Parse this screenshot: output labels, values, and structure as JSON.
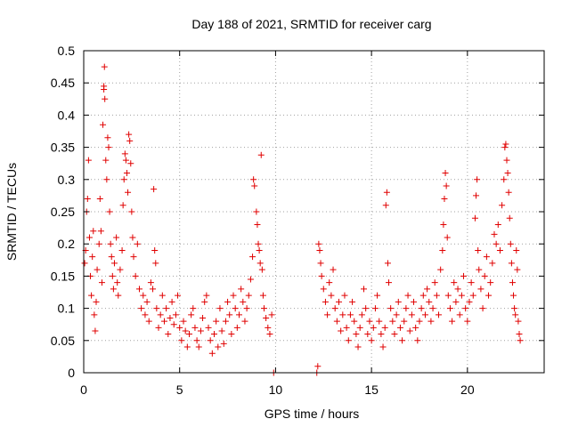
{
  "chart_data": {
    "type": "scatter",
    "title": "Day 188 of 2021, SRMTID for receiver carg",
    "xlabel": "GPS time / hours",
    "ylabel": "SRMTID / TECUs",
    "xlim": [
      0,
      24
    ],
    "ylim": [
      0,
      0.5
    ],
    "x_ticks": [
      0,
      5,
      10,
      15,
      20
    ],
    "x_tick_labels": [
      "0",
      "5",
      "10",
      "15",
      "20"
    ],
    "y_ticks": [
      0,
      0.05,
      0.1,
      0.15,
      0.2,
      0.25,
      0.3,
      0.35,
      0.4,
      0.45,
      0.5
    ],
    "y_tick_labels": [
      "0",
      "0.05",
      "0.1",
      "0.15",
      "0.2",
      "0.25",
      "0.3",
      "0.35",
      "0.4",
      "0.45",
      "0.5"
    ],
    "grid": true,
    "marker": "+",
    "marker_color": "#e00000",
    "series": [
      {
        "name": "SRMTID",
        "points": [
          [
            0.05,
            0.17
          ],
          [
            0.1,
            0.19
          ],
          [
            0.15,
            0.25
          ],
          [
            0.2,
            0.27
          ],
          [
            0.25,
            0.33
          ],
          [
            0.3,
            0.21
          ],
          [
            0.35,
            0.15
          ],
          [
            0.4,
            0.12
          ],
          [
            0.45,
            0.18
          ],
          [
            0.5,
            0.22
          ],
          [
            0.55,
            0.09
          ],
          [
            0.6,
            0.065
          ],
          [
            0.65,
            0.11
          ],
          [
            0.7,
            0.16
          ],
          [
            0.8,
            0.2
          ],
          [
            0.85,
            0.27
          ],
          [
            0.9,
            0.22
          ],
          [
            0.95,
            0.14
          ],
          [
            1.0,
            0.385
          ],
          [
            1.05,
            0.445
          ],
          [
            1.05,
            0.44
          ],
          [
            1.08,
            0.475
          ],
          [
            1.1,
            0.425
          ],
          [
            1.15,
            0.33
          ],
          [
            1.2,
            0.3
          ],
          [
            1.25,
            0.365
          ],
          [
            1.3,
            0.35
          ],
          [
            1.35,
            0.25
          ],
          [
            1.4,
            0.2
          ],
          [
            1.45,
            0.18
          ],
          [
            1.5,
            0.15
          ],
          [
            1.55,
            0.13
          ],
          [
            1.6,
            0.17
          ],
          [
            1.7,
            0.21
          ],
          [
            1.75,
            0.14
          ],
          [
            1.8,
            0.12
          ],
          [
            1.9,
            0.16
          ],
          [
            2.0,
            0.19
          ],
          [
            2.05,
            0.26
          ],
          [
            2.1,
            0.3
          ],
          [
            2.15,
            0.34
          ],
          [
            2.2,
            0.33
          ],
          [
            2.25,
            0.31
          ],
          [
            2.3,
            0.28
          ],
          [
            2.35,
            0.37
          ],
          [
            2.4,
            0.36
          ],
          [
            2.45,
            0.325
          ],
          [
            2.5,
            0.25
          ],
          [
            2.55,
            0.21
          ],
          [
            2.6,
            0.18
          ],
          [
            2.7,
            0.15
          ],
          [
            2.8,
            0.2
          ],
          [
            2.9,
            0.13
          ],
          [
            3.0,
            0.1
          ],
          [
            3.1,
            0.12
          ],
          [
            3.2,
            0.09
          ],
          [
            3.3,
            0.11
          ],
          [
            3.4,
            0.08
          ],
          [
            3.5,
            0.14
          ],
          [
            3.6,
            0.13
          ],
          [
            3.65,
            0.285
          ],
          [
            3.7,
            0.19
          ],
          [
            3.75,
            0.17
          ],
          [
            3.8,
            0.1
          ],
          [
            3.9,
            0.07
          ],
          [
            4.0,
            0.09
          ],
          [
            4.1,
            0.12
          ],
          [
            4.2,
            0.08
          ],
          [
            4.3,
            0.1
          ],
          [
            4.4,
            0.06
          ],
          [
            4.5,
            0.085
          ],
          [
            4.6,
            0.11
          ],
          [
            4.7,
            0.075
          ],
          [
            4.8,
            0.09
          ],
          [
            4.9,
            0.12
          ],
          [
            5.0,
            0.07
          ],
          [
            5.1,
            0.05
          ],
          [
            5.2,
            0.08
          ],
          [
            5.3,
            0.065
          ],
          [
            5.4,
            0.04
          ],
          [
            5.5,
            0.06
          ],
          [
            5.6,
            0.09
          ],
          [
            5.7,
            0.1
          ],
          [
            5.8,
            0.07
          ],
          [
            5.9,
            0.05
          ],
          [
            6.0,
            0.04
          ],
          [
            6.1,
            0.065
          ],
          [
            6.2,
            0.085
          ],
          [
            6.3,
            0.11
          ],
          [
            6.4,
            0.12
          ],
          [
            6.5,
            0.07
          ],
          [
            6.6,
            0.05
          ],
          [
            6.7,
            0.03
          ],
          [
            6.8,
            0.06
          ],
          [
            6.9,
            0.08
          ],
          [
            7.0,
            0.04
          ],
          [
            7.1,
            0.1
          ],
          [
            7.2,
            0.065
          ],
          [
            7.3,
            0.045
          ],
          [
            7.4,
            0.08
          ],
          [
            7.5,
            0.11
          ],
          [
            7.6,
            0.09
          ],
          [
            7.7,
            0.06
          ],
          [
            7.8,
            0.12
          ],
          [
            7.9,
            0.1
          ],
          [
            8.0,
            0.07
          ],
          [
            8.1,
            0.09
          ],
          [
            8.2,
            0.13
          ],
          [
            8.3,
            0.11
          ],
          [
            8.4,
            0.08
          ],
          [
            8.5,
            0.1
          ],
          [
            8.6,
            0.12
          ],
          [
            8.7,
            0.145
          ],
          [
            8.8,
            0.18
          ],
          [
            8.85,
            0.3
          ],
          [
            8.9,
            0.29
          ],
          [
            9.0,
            0.25
          ],
          [
            9.05,
            0.23
          ],
          [
            9.1,
            0.2
          ],
          [
            9.15,
            0.19
          ],
          [
            9.2,
            0.17
          ],
          [
            9.25,
            0.338
          ],
          [
            9.3,
            0.16
          ],
          [
            9.35,
            0.12
          ],
          [
            9.4,
            0.1
          ],
          [
            9.5,
            0.085
          ],
          [
            9.6,
            0.07
          ],
          [
            9.7,
            0.06
          ],
          [
            9.8,
            0.09
          ],
          [
            9.9,
            0.0
          ],
          [
            12.15,
            0.0
          ],
          [
            12.2,
            0.01
          ],
          [
            12.25,
            0.2
          ],
          [
            12.3,
            0.19
          ],
          [
            12.35,
            0.17
          ],
          [
            12.4,
            0.15
          ],
          [
            12.5,
            0.13
          ],
          [
            12.6,
            0.11
          ],
          [
            12.7,
            0.09
          ],
          [
            12.8,
            0.14
          ],
          [
            12.9,
            0.12
          ],
          [
            13.0,
            0.16
          ],
          [
            13.1,
            0.1
          ],
          [
            13.2,
            0.08
          ],
          [
            13.3,
            0.11
          ],
          [
            13.4,
            0.065
          ],
          [
            13.5,
            0.09
          ],
          [
            13.6,
            0.12
          ],
          [
            13.7,
            0.07
          ],
          [
            13.8,
            0.05
          ],
          [
            13.9,
            0.09
          ],
          [
            14.0,
            0.11
          ],
          [
            14.1,
            0.08
          ],
          [
            14.2,
            0.06
          ],
          [
            14.3,
            0.04
          ],
          [
            14.4,
            0.07
          ],
          [
            14.5,
            0.09
          ],
          [
            14.6,
            0.13
          ],
          [
            14.7,
            0.1
          ],
          [
            14.8,
            0.06
          ],
          [
            14.9,
            0.08
          ],
          [
            15.0,
            0.05
          ],
          [
            15.1,
            0.07
          ],
          [
            15.2,
            0.1
          ],
          [
            15.3,
            0.12
          ],
          [
            15.4,
            0.08
          ],
          [
            15.5,
            0.06
          ],
          [
            15.6,
            0.04
          ],
          [
            15.7,
            0.07
          ],
          [
            15.75,
            0.26
          ],
          [
            15.8,
            0.28
          ],
          [
            15.85,
            0.17
          ],
          [
            15.9,
            0.14
          ],
          [
            16.0,
            0.1
          ],
          [
            16.1,
            0.08
          ],
          [
            16.2,
            0.06
          ],
          [
            16.3,
            0.09
          ],
          [
            16.4,
            0.11
          ],
          [
            16.5,
            0.07
          ],
          [
            16.6,
            0.05
          ],
          [
            16.7,
            0.08
          ],
          [
            16.8,
            0.1
          ],
          [
            16.9,
            0.12
          ],
          [
            17.0,
            0.065
          ],
          [
            17.1,
            0.09
          ],
          [
            17.2,
            0.11
          ],
          [
            17.3,
            0.07
          ],
          [
            17.4,
            0.05
          ],
          [
            17.5,
            0.08
          ],
          [
            17.6,
            0.1
          ],
          [
            17.7,
            0.12
          ],
          [
            17.8,
            0.09
          ],
          [
            17.9,
            0.13
          ],
          [
            18.0,
            0.11
          ],
          [
            18.1,
            0.08
          ],
          [
            18.2,
            0.1
          ],
          [
            18.3,
            0.14
          ],
          [
            18.4,
            0.12
          ],
          [
            18.5,
            0.09
          ],
          [
            18.6,
            0.16
          ],
          [
            18.7,
            0.19
          ],
          [
            18.75,
            0.23
          ],
          [
            18.8,
            0.27
          ],
          [
            18.85,
            0.31
          ],
          [
            18.9,
            0.29
          ],
          [
            18.95,
            0.21
          ],
          [
            19.0,
            0.12
          ],
          [
            19.1,
            0.1
          ],
          [
            19.2,
            0.08
          ],
          [
            19.3,
            0.14
          ],
          [
            19.4,
            0.11
          ],
          [
            19.5,
            0.13
          ],
          [
            19.6,
            0.09
          ],
          [
            19.7,
            0.12
          ],
          [
            19.8,
            0.15
          ],
          [
            19.9,
            0.1
          ],
          [
            20.0,
            0.08
          ],
          [
            20.1,
            0.11
          ],
          [
            20.2,
            0.14
          ],
          [
            20.3,
            0.12
          ],
          [
            20.4,
            0.24
          ],
          [
            20.45,
            0.275
          ],
          [
            20.5,
            0.3
          ],
          [
            20.55,
            0.19
          ],
          [
            20.6,
            0.16
          ],
          [
            20.7,
            0.13
          ],
          [
            20.8,
            0.1
          ],
          [
            20.9,
            0.15
          ],
          [
            21.0,
            0.18
          ],
          [
            21.1,
            0.12
          ],
          [
            21.2,
            0.14
          ],
          [
            21.3,
            0.17
          ],
          [
            21.4,
            0.215
          ],
          [
            21.5,
            0.2
          ],
          [
            21.6,
            0.23
          ],
          [
            21.7,
            0.19
          ],
          [
            21.8,
            0.26
          ],
          [
            21.9,
            0.3
          ],
          [
            21.95,
            0.35
          ],
          [
            22.0,
            0.355
          ],
          [
            22.05,
            0.33
          ],
          [
            22.1,
            0.31
          ],
          [
            22.15,
            0.28
          ],
          [
            22.2,
            0.24
          ],
          [
            22.25,
            0.2
          ],
          [
            22.3,
            0.17
          ],
          [
            22.35,
            0.14
          ],
          [
            22.4,
            0.12
          ],
          [
            22.45,
            0.1
          ],
          [
            22.5,
            0.09
          ],
          [
            22.55,
            0.19
          ],
          [
            22.6,
            0.16
          ],
          [
            22.65,
            0.08
          ],
          [
            22.7,
            0.06
          ],
          [
            22.75,
            0.05
          ]
        ]
      }
    ]
  }
}
